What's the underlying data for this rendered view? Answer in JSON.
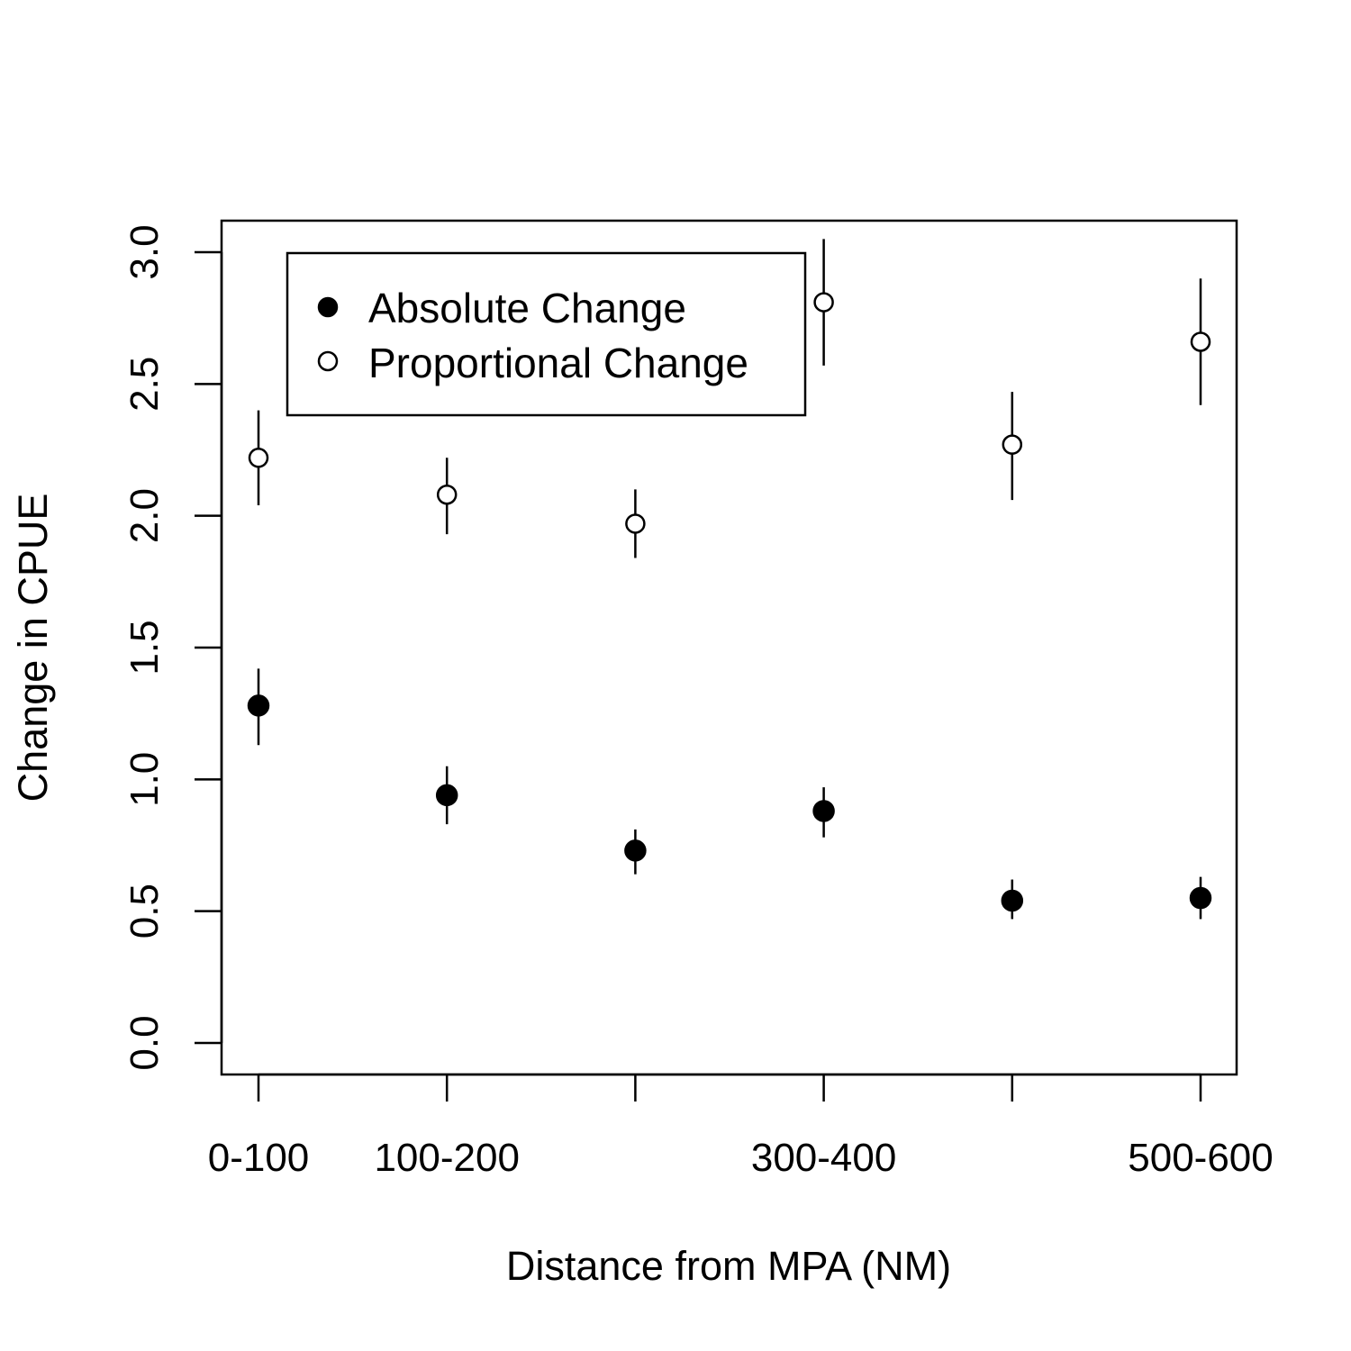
{
  "chart_data": {
    "type": "scatter",
    "title": "",
    "xlabel": "Distance from MPA (NM)",
    "ylabel": "Change in CPUE",
    "ylim": [
      0.0,
      3.0
    ],
    "y_ticks": [
      "0.0",
      "0.5",
      "1.0",
      "1.5",
      "2.0",
      "2.5",
      "3.0"
    ],
    "x_positions": [
      1,
      2,
      3,
      4,
      5,
      6
    ],
    "x_tick_labels": [
      "0-100",
      "100-200",
      "",
      "300-400",
      "",
      "500-600"
    ],
    "grid": false,
    "legend_position": "top-left",
    "series": [
      {
        "name": "Absolute Change",
        "marker": "filled-circle",
        "values": [
          1.28,
          0.94,
          0.73,
          0.88,
          0.54,
          0.55
        ],
        "lower": [
          1.13,
          0.83,
          0.64,
          0.78,
          0.47,
          0.47
        ],
        "upper": [
          1.42,
          1.05,
          0.81,
          0.97,
          0.62,
          0.63
        ]
      },
      {
        "name": "Proportional Change",
        "marker": "open-circle",
        "values": [
          2.22,
          2.08,
          1.97,
          2.81,
          2.27,
          2.66
        ],
        "lower": [
          2.04,
          1.93,
          1.84,
          2.57,
          2.06,
          2.42
        ],
        "upper": [
          2.4,
          2.22,
          2.1,
          3.05,
          2.47,
          2.9
        ]
      }
    ]
  }
}
